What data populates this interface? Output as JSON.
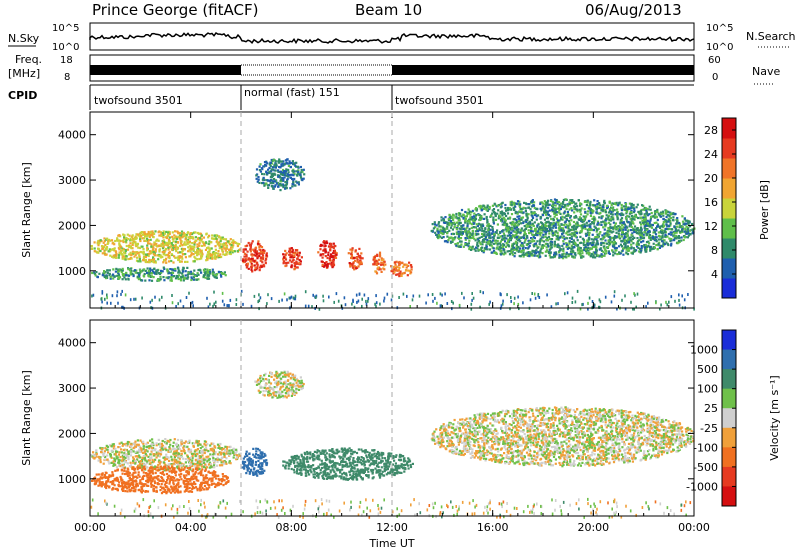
{
  "header": {
    "station": "Prince George (fitACF)",
    "beam": "Beam 10",
    "date": "06/Aug/2013"
  },
  "strips": {
    "nsky_label": "N.Sky",
    "nsky_ticks": [
      "10^5",
      "10^0"
    ],
    "nsearch_label": "N.Search",
    "nsearch_ticks": [
      "10^5",
      "10^0"
    ],
    "freq_label_line1": "Freq.",
    "freq_label_line2": "[MHz]",
    "freq_ticks": [
      "18",
      "8"
    ],
    "nave_label": "Nave",
    "nave_ticks": [
      "60",
      "0"
    ],
    "cpid_label": "CPID",
    "cpid_segments": [
      "twofsound 3501",
      "normal (fast) 151",
      "twofsound 3501"
    ]
  },
  "chart_data": [
    {
      "type": "heatmap",
      "title": "",
      "ylabel": "Slant Range [km]",
      "xlabel": "",
      "ylim": [
        180,
        4500
      ],
      "y_ticks": [
        "1000",
        "2000",
        "3000",
        "4000"
      ],
      "x_ticks": [
        "00:00",
        "04:00",
        "08:00",
        "12:00",
        "16:00",
        "20:00",
        "00:00"
      ],
      "colorbar": {
        "label": "Power [dB]",
        "ticks": [
          "4",
          "8",
          "12",
          "16",
          "20",
          "24",
          "28"
        ],
        "range": [
          0,
          30
        ],
        "colors": [
          "#1a2dd8",
          "#1f5fae",
          "#2f8a6a",
          "#5fbf4a",
          "#c9d43a",
          "#f1a532",
          "#f07428",
          "#e63a20",
          "#d50f10"
        ]
      },
      "features": [
        {
          "t_start": 0.0,
          "t_end": 6.0,
          "range_min": 1200,
          "range_max": 1900,
          "level": 16
        },
        {
          "t_start": 0.0,
          "t_end": 5.5,
          "range_min": 800,
          "range_max": 1100,
          "level": 8
        },
        {
          "t_start": 6.5,
          "t_end": 8.5,
          "range_min": 2800,
          "range_max": 3500,
          "level": 6
        },
        {
          "t_start": 6.0,
          "t_end": 7.0,
          "range_min": 1000,
          "range_max": 1700,
          "level": 26
        },
        {
          "t_start": 7.6,
          "t_end": 8.4,
          "range_min": 1050,
          "range_max": 1550,
          "level": 26
        },
        {
          "t_start": 9.0,
          "t_end": 9.8,
          "range_min": 1050,
          "range_max": 1700,
          "level": 28
        },
        {
          "t_start": 10.2,
          "t_end": 10.8,
          "range_min": 1050,
          "range_max": 1550,
          "level": 25
        },
        {
          "t_start": 11.2,
          "t_end": 11.7,
          "range_min": 950,
          "range_max": 1450,
          "level": 24
        },
        {
          "t_start": 11.9,
          "t_end": 12.8,
          "range_min": 900,
          "range_max": 1250,
          "level": 22
        },
        {
          "t_start": 13.5,
          "t_end": 24.0,
          "range_min": 1300,
          "range_max": 2600,
          "level": 8
        }
      ]
    },
    {
      "type": "heatmap",
      "title": "",
      "ylabel": "Slant Range [km]",
      "xlabel": "Time UT",
      "ylim": [
        180,
        4500
      ],
      "y_ticks": [
        "1000",
        "2000",
        "3000",
        "4000"
      ],
      "x_ticks": [
        "00:00",
        "04:00",
        "08:00",
        "12:00",
        "16:00",
        "20:00",
        "00:00"
      ],
      "colorbar": {
        "label": "Velocity [m s⁻¹]",
        "ticks": [
          "1000",
          "500",
          "100",
          "25",
          "-25",
          "-100",
          "-500",
          "-1000"
        ],
        "colors": [
          "#1a2dd8",
          "#2f6fae",
          "#3f8a6a",
          "#6fc04a",
          "#cfcfcf",
          "#f0a03a",
          "#f07020",
          "#e63a20",
          "#d50f10"
        ]
      },
      "features": [
        {
          "t_start": 0.0,
          "t_end": 6.0,
          "range_min": 1200,
          "range_max": 1900,
          "velocity": 0
        },
        {
          "t_start": 0.0,
          "t_end": 5.5,
          "range_min": 700,
          "range_max": 1300,
          "velocity": -300
        },
        {
          "t_start": 6.5,
          "t_end": 8.5,
          "range_min": 2800,
          "range_max": 3400,
          "velocity": 0
        },
        {
          "t_start": 6.0,
          "t_end": 7.0,
          "range_min": 1050,
          "range_max": 1700,
          "velocity": 600
        },
        {
          "t_start": 7.6,
          "t_end": 12.8,
          "range_min": 1000,
          "range_max": 1700,
          "velocity": 200
        },
        {
          "t_start": 13.5,
          "t_end": 24.0,
          "range_min": 1300,
          "range_max": 2600,
          "velocity": 0
        }
      ]
    }
  ]
}
